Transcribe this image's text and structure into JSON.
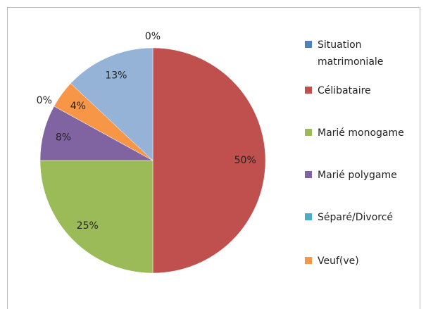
{
  "chart_data": {
    "type": "pie",
    "categories": [
      "Situation matrimoniale",
      "Célibataire",
      "Marié monogame",
      "Marié polygame",
      "Séparé/Divorcé",
      "Veuf(ve)",
      null
    ],
    "values": [
      0,
      50,
      25,
      8,
      0,
      4,
      13
    ],
    "value_labels": [
      "0%",
      "50%",
      "25%",
      "8%",
      "0%",
      "4%",
      "13%"
    ],
    "colors": [
      "#4f81bd",
      "#c0504d",
      "#9bbb59",
      "#8064a2",
      "#4bacc6",
      "#f79646",
      "#95b3d7"
    ]
  }
}
